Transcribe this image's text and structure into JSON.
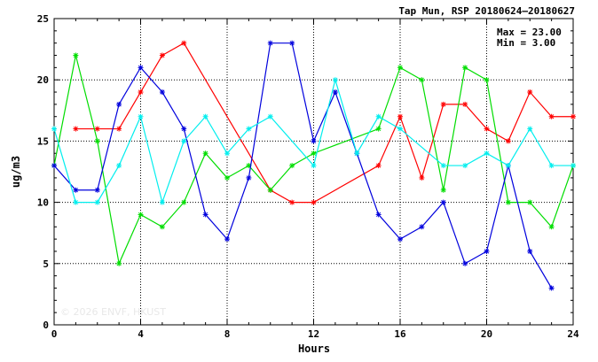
{
  "chart_data": {
    "type": "line",
    "title": "Tap Mun, RSP 20180624–20180627",
    "xlabel": "Hours",
    "ylabel": "ug/m3",
    "xlim": [
      0,
      24
    ],
    "ylim": [
      0,
      25
    ],
    "xticks": [
      0,
      4,
      8,
      12,
      16,
      20,
      24
    ],
    "yticks": [
      0,
      5,
      10,
      15,
      20,
      25
    ],
    "grid": "dotted",
    "stats": {
      "max_label": "Max = 23.00",
      "min_label": "Min =  3.00"
    },
    "watermark": "© 2026  ENVF, HKUST",
    "series": [
      {
        "color": "#ff0000",
        "points": [
          [
            1,
            16
          ],
          [
            2,
            16
          ],
          [
            3,
            16
          ],
          [
            4,
            19
          ],
          [
            5,
            22
          ],
          [
            6,
            23
          ],
          [
            10,
            11
          ],
          [
            11,
            10
          ],
          [
            12,
            10
          ],
          [
            15,
            13
          ],
          [
            16,
            17
          ],
          [
            17,
            12
          ],
          [
            18,
            18
          ],
          [
            19,
            18
          ],
          [
            20,
            16
          ],
          [
            21,
            15
          ],
          [
            22,
            19
          ],
          [
            23,
            17
          ],
          [
            24,
            17
          ]
        ]
      },
      {
        "color": "#00dd00",
        "points": [
          [
            0,
            13
          ],
          [
            1,
            22
          ],
          [
            2,
            15
          ],
          [
            3,
            5
          ],
          [
            4,
            9
          ],
          [
            5,
            8
          ],
          [
            6,
            10
          ],
          [
            7,
            14
          ],
          [
            8,
            12
          ],
          [
            9,
            13
          ],
          [
            10,
            11
          ],
          [
            11,
            13
          ],
          [
            12,
            14
          ],
          [
            15,
            16
          ],
          [
            16,
            21
          ],
          [
            17,
            20
          ],
          [
            18,
            11
          ],
          [
            19,
            21
          ],
          [
            20,
            20
          ],
          [
            21,
            10
          ],
          [
            22,
            10
          ],
          [
            23,
            8
          ],
          [
            24,
            13
          ]
        ]
      },
      {
        "color": "#0000dd",
        "points": [
          [
            0,
            13
          ],
          [
            1,
            11
          ],
          [
            2,
            11
          ],
          [
            3,
            18
          ],
          [
            4,
            21
          ],
          [
            5,
            19
          ],
          [
            6,
            16
          ],
          [
            7,
            9
          ],
          [
            8,
            7
          ],
          [
            9,
            12
          ],
          [
            10,
            23
          ],
          [
            11,
            23
          ],
          [
            12,
            15
          ],
          [
            13,
            19
          ],
          [
            14,
            14
          ],
          [
            15,
            9
          ],
          [
            16,
            7
          ],
          [
            17,
            8
          ],
          [
            18,
            10
          ],
          [
            19,
            5
          ],
          [
            20,
            6
          ],
          [
            21,
            13
          ],
          [
            22,
            6
          ],
          [
            23,
            3
          ]
        ]
      },
      {
        "color": "#00eeee",
        "points": [
          [
            0,
            16
          ],
          [
            1,
            10
          ],
          [
            2,
            10
          ],
          [
            3,
            13
          ],
          [
            4,
            17
          ],
          [
            5,
            10
          ],
          [
            6,
            15
          ],
          [
            7,
            17
          ],
          [
            8,
            14
          ],
          [
            9,
            16
          ],
          [
            10,
            17
          ],
          [
            12,
            13
          ],
          [
            13,
            20
          ],
          [
            14,
            14
          ],
          [
            15,
            17
          ],
          [
            16,
            16
          ],
          [
            18,
            13
          ],
          [
            19,
            13
          ],
          [
            20,
            14
          ],
          [
            21,
            13
          ],
          [
            22,
            16
          ],
          [
            23,
            13
          ],
          [
            24,
            13
          ]
        ]
      }
    ]
  }
}
